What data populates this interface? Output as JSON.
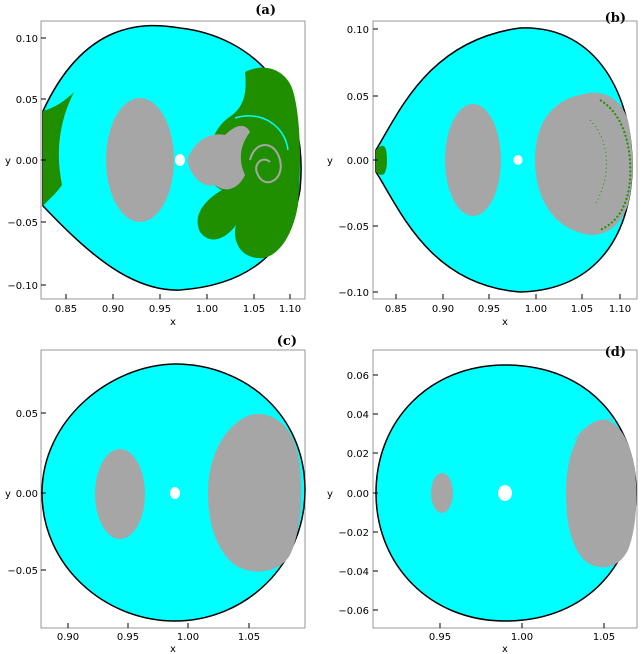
{
  "chart_data": [
    {
      "type": "scatter",
      "panel_label": "(a)",
      "xlabel": "x",
      "ylabel": "y",
      "xlim": [
        0.835,
        1.115
      ],
      "ylim": [
        -0.105,
        0.105
      ],
      "xticks": [
        "0.85",
        "0.90",
        "0.95",
        "1.00",
        "1.05",
        "1.10"
      ],
      "yticks": [
        "0.10",
        "0.05",
        "0.00",
        "−0.05",
        "−0.10"
      ],
      "colors": {
        "background": "#00ffff",
        "bounded": "#a6a6a6",
        "escape": "#1f8f00",
        "hole": "#ffffff",
        "border": "#000000"
      }
    },
    {
      "type": "scatter",
      "panel_label": "(b)",
      "xlabel": "x",
      "ylabel": "y",
      "xlim": [
        0.835,
        1.115
      ],
      "ylim": [
        -0.102,
        0.102
      ],
      "xticks": [
        "0.85",
        "0.90",
        "0.95",
        "1.00",
        "1.05",
        "1.10"
      ],
      "yticks": [
        "0.10",
        "0.05",
        "0.00",
        "−0.05",
        "−0.10"
      ],
      "colors": {
        "background": "#00ffff",
        "bounded": "#a6a6a6",
        "escape": "#1f8f00",
        "hole": "#ffffff",
        "border": "#000000"
      }
    },
    {
      "type": "scatter",
      "panel_label": "(c)",
      "xlabel": "x",
      "ylabel": "y",
      "xlim": [
        0.877,
        1.095
      ],
      "ylim": [
        -0.088,
        0.088
      ],
      "xticks": [
        "0.90",
        "0.95",
        "1.00",
        "1.05"
      ],
      "yticks": [
        "0.05",
        "0.00",
        "−0.05"
      ],
      "colors": {
        "background": "#00ffff",
        "bounded": "#a6a6a6",
        "hole": "#ffffff",
        "border": "#000000"
      }
    },
    {
      "type": "scatter",
      "panel_label": "(d)",
      "xlabel": "x",
      "ylabel": "y",
      "xlim": [
        0.907,
        1.068
      ],
      "ylim": [
        -0.068,
        0.068
      ],
      "xticks": [
        "0.95",
        "1.00",
        "1.05"
      ],
      "yticks": [
        "0.06",
        "0.04",
        "0.02",
        "0.00",
        "−0.02",
        "−0.04",
        "−0.06"
      ],
      "colors": {
        "background": "#00ffff",
        "bounded": "#a6a6a6",
        "hole": "#ffffff",
        "border": "#000000"
      }
    }
  ]
}
